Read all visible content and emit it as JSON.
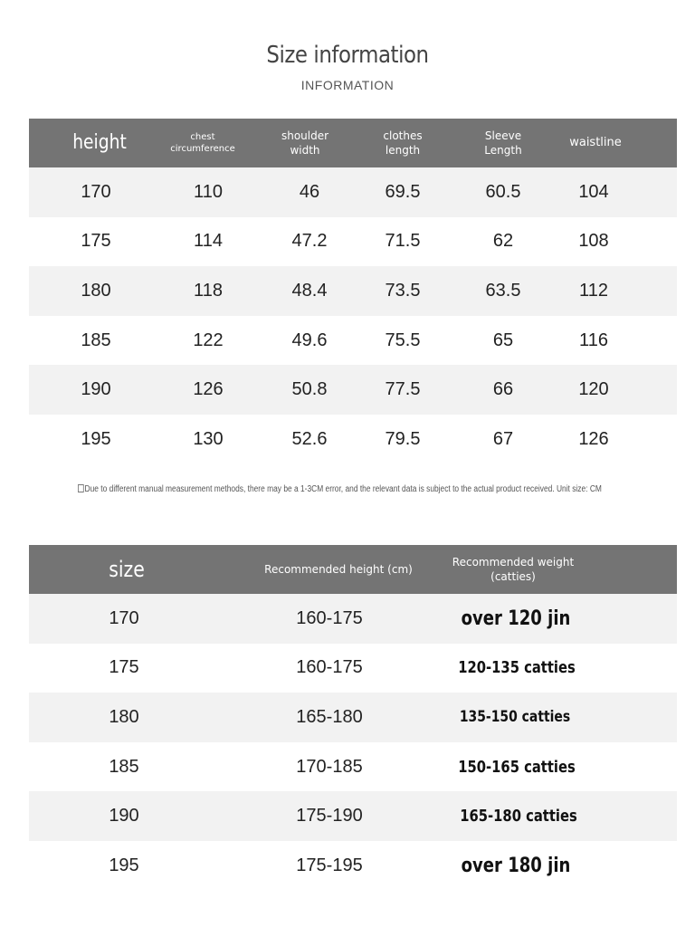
{
  "header": {
    "title": "Size information",
    "subtitle": "INFORMATION"
  },
  "size_table": {
    "columns": [
      [
        "height"
      ],
      [
        "chest",
        "circumference"
      ],
      [
        "shoulder",
        "width"
      ],
      [
        "clothes",
        "length"
      ],
      [
        "Sleeve",
        "Length"
      ],
      [
        "waistline"
      ]
    ],
    "rows": [
      [
        "170",
        "110",
        "46",
        "69.5",
        "60.5",
        "104"
      ],
      [
        "175",
        "114",
        "47.2",
        "71.5",
        "62",
        "108"
      ],
      [
        "180",
        "118",
        "48.4",
        "73.5",
        "63.5",
        "112"
      ],
      [
        "185",
        "122",
        "49.6",
        "75.5",
        "65",
        "116"
      ],
      [
        "190",
        "126",
        "50.8",
        "77.5",
        "66",
        "120"
      ],
      [
        "195",
        "130",
        "52.6",
        "79.5",
        "67",
        "126"
      ]
    ]
  },
  "note": "Due to different manual measurement methods, there may be a 1-3CM error, and the relevant data is subject to the actual product received. Unit size: CM",
  "recommend_table": {
    "columns": [
      [
        "size"
      ],
      [
        "Recommended height (cm)"
      ],
      [
        "Recommended weight",
        "(catties)"
      ]
    ],
    "rows": [
      [
        "170",
        "160-175",
        "over 120 jin"
      ],
      [
        "175",
        "160-175",
        "120-135 catties"
      ],
      [
        "180",
        "165-180",
        "135-150 catties"
      ],
      [
        "185",
        "170-185",
        "150-165 catties"
      ],
      [
        "190",
        "175-190",
        "165-180 catties"
      ],
      [
        "195",
        "175-195",
        "over 180 jin"
      ]
    ]
  },
  "colors": {
    "header_bg": "#747474",
    "stripe_bg": "#f2f2f2"
  }
}
